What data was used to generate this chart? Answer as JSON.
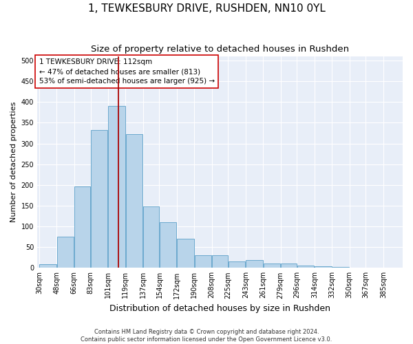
{
  "title": "1, TEWKESBURY DRIVE, RUSHDEN, NN10 0YL",
  "subtitle": "Size of property relative to detached houses in Rushden",
  "xlabel": "Distribution of detached houses by size in Rushden",
  "ylabel": "Number of detached properties",
  "footer_line1": "Contains HM Land Registry data © Crown copyright and database right 2024.",
  "footer_line2": "Contains public sector information licensed under the Open Government Licence v3.0.",
  "bin_labels": [
    "30sqm",
    "48sqm",
    "66sqm",
    "83sqm",
    "101sqm",
    "119sqm",
    "137sqm",
    "154sqm",
    "172sqm",
    "190sqm",
    "208sqm",
    "225sqm",
    "243sqm",
    "261sqm",
    "279sqm",
    "296sqm",
    "314sqm",
    "332sqm",
    "350sqm",
    "367sqm",
    "385sqm"
  ],
  "bar_values": [
    8,
    75,
    197,
    332,
    390,
    322,
    148,
    110,
    70,
    30,
    30,
    15,
    18,
    10,
    10,
    6,
    3,
    2,
    1,
    1,
    0
  ],
  "bin_edges": [
    30,
    48,
    66,
    83,
    101,
    119,
    137,
    154,
    172,
    190,
    208,
    225,
    243,
    261,
    279,
    296,
    314,
    332,
    350,
    367,
    385,
    403
  ],
  "property_size": 112,
  "vline_color": "#aa0000",
  "bar_facecolor": "#b8d4ea",
  "bar_edgecolor": "#5a9fc8",
  "annotation_text": "1 TEWKESBURY DRIVE: 112sqm\n← 47% of detached houses are smaller (813)\n53% of semi-detached houses are larger (925) →",
  "annotation_box_color": "#cc0000",
  "background_color": "#e8eef8",
  "ylim": [
    0,
    510
  ],
  "yticks": [
    0,
    50,
    100,
    150,
    200,
    250,
    300,
    350,
    400,
    450,
    500
  ],
  "grid_color": "#ffffff",
  "title_fontsize": 11,
  "subtitle_fontsize": 9.5,
  "xlabel_fontsize": 9,
  "ylabel_fontsize": 8,
  "tick_fontsize": 7,
  "annotation_fontsize": 7.5,
  "footer_fontsize": 6
}
